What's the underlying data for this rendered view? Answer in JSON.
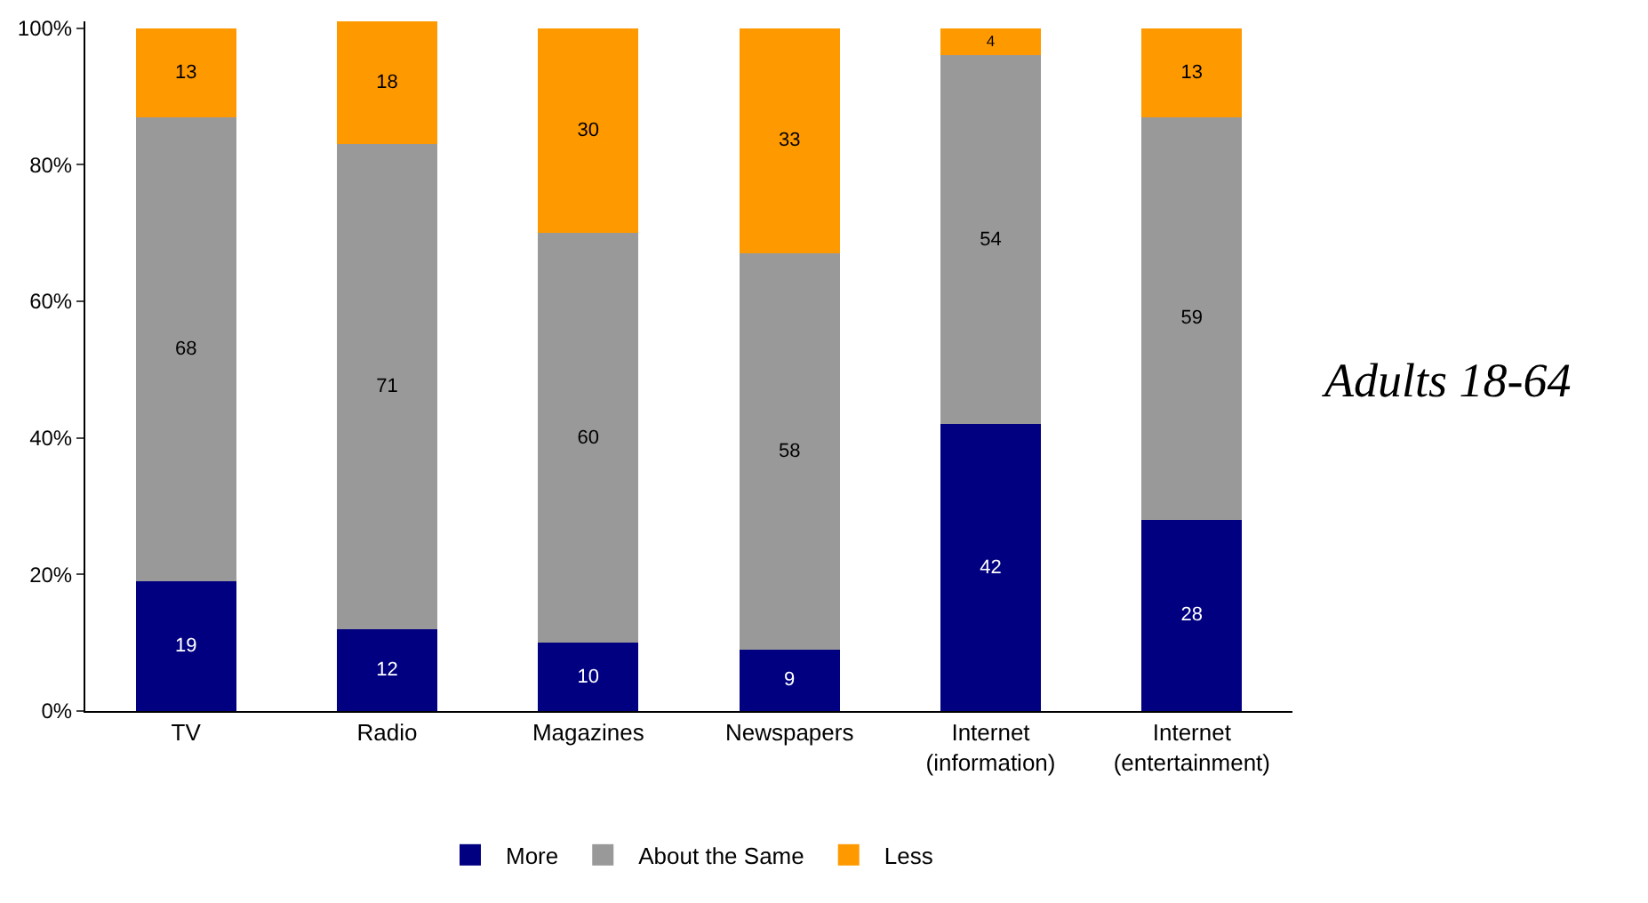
{
  "chart_data": {
    "type": "bar",
    "stacked": true,
    "categories": [
      "TV",
      "Radio",
      "Magazines",
      "Newspapers",
      "Internet\n(information)",
      "Internet\n(entertainment)"
    ],
    "series": [
      {
        "name": "More",
        "color": "#000080",
        "values": [
          19,
          12,
          10,
          9,
          42,
          28
        ],
        "value_labels": [
          "19",
          "12",
          "10",
          "9",
          "42",
          "28"
        ]
      },
      {
        "name": "About the Same",
        "color": "#999999",
        "values": [
          68,
          71,
          60,
          58,
          54,
          59
        ],
        "value_labels": [
          "68",
          "71",
          "60",
          "58",
          "54",
          "59"
        ]
      },
      {
        "name": "Less",
        "color": "#ff9900",
        "values": [
          13,
          18,
          30,
          33,
          4,
          13
        ],
        "value_labels": [
          "13",
          "18",
          "30",
          "33",
          "4",
          "13"
        ]
      }
    ],
    "ylim": [
      0,
      101
    ],
    "yticks": [
      {
        "value": 0,
        "label": "0%"
      },
      {
        "value": 20,
        "label": "20%"
      },
      {
        "value": 40,
        "label": "40%"
      },
      {
        "value": 60,
        "label": "60%"
      },
      {
        "value": 80,
        "label": "80%"
      },
      {
        "value": 100,
        "label": "100%"
      }
    ],
    "legend": "bottom",
    "grid": false,
    "annotations": [
      "Adults 18-64"
    ]
  }
}
